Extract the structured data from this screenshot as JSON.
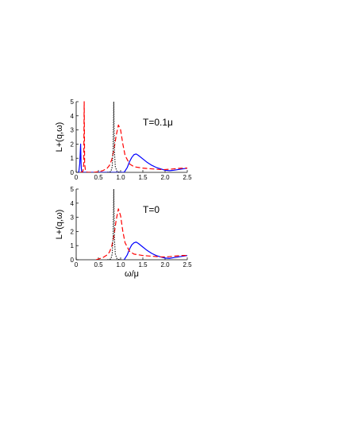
{
  "figure": {
    "xlabel": "ω/μ"
  },
  "chart_data": [
    {
      "type": "line",
      "annotation": "T=0.1μ",
      "ylabel": "L+(q,ω)",
      "xlim": [
        0,
        2.5
      ],
      "ylim": [
        0,
        5
      ],
      "xticks": [
        "0",
        "0.5",
        "1.0",
        "1.5",
        "2.0",
        "2.5"
      ],
      "yticks": [
        "0",
        "1",
        "2",
        "3",
        "4",
        "5"
      ],
      "grid": false,
      "series": [
        {
          "color": "#0000ff",
          "style": "solid",
          "x": [
            0.05,
            0.06,
            0.08,
            0.1,
            0.11,
            0.12,
            0.13,
            0.15,
            1.08,
            1.15,
            1.2,
            1.25,
            1.3,
            1.35,
            1.4,
            1.5,
            1.6,
            1.7,
            1.8,
            1.9,
            2.0,
            2.1,
            2.2,
            2.3,
            2.4,
            2.5
          ],
          "y": [
            0,
            0.05,
            0.6,
            2.0,
            0.6,
            0.1,
            0,
            0,
            0,
            0.35,
            0.75,
            1.05,
            1.25,
            1.3,
            1.2,
            0.95,
            0.7,
            0.5,
            0.35,
            0.25,
            0.15,
            0.12,
            0.15,
            0.2,
            0.25,
            0.3
          ]
        },
        {
          "color": "#ff0000",
          "style": "dashed",
          "x": [
            0.1,
            0.15,
            0.17,
            0.18,
            0.19,
            0.21,
            0.25,
            0.4,
            0.5,
            0.6,
            0.7,
            0.75,
            0.8,
            0.85,
            0.9,
            0.95,
            1.0,
            1.05,
            1.1,
            1.2,
            1.3,
            1.5,
            1.7,
            1.9,
            2.0,
            2.1,
            2.2,
            2.3,
            2.4,
            2.5
          ],
          "y": [
            0,
            0.05,
            0.6,
            5.0,
            0.6,
            0.1,
            0,
            0,
            0.05,
            0.12,
            0.3,
            0.5,
            0.9,
            1.6,
            2.6,
            3.35,
            3.0,
            2.0,
            1.2,
            0.6,
            0.4,
            0.3,
            0.25,
            0.2,
            0.2,
            0.22,
            0.25,
            0.28,
            0.3,
            0.3
          ]
        },
        {
          "color": "#000000",
          "style": "dotted",
          "x": [
            0.7,
            0.78,
            0.81,
            0.83,
            0.845,
            0.86,
            0.88,
            0.92,
            1.0
          ],
          "y": [
            0,
            0.05,
            0.4,
            1.6,
            5.0,
            1.6,
            0.4,
            0.05,
            0
          ]
        }
      ]
    },
    {
      "type": "line",
      "annotation": "T=0",
      "ylabel": "L+(q,ω)",
      "xlabel": "ω/μ",
      "xlim": [
        0,
        2.5
      ],
      "ylim": [
        0,
        5
      ],
      "xticks": [
        "0",
        "0.5",
        "1.0",
        "1.5",
        "2.0",
        "2.5"
      ],
      "yticks": [
        "0",
        "1",
        "2",
        "3",
        "4",
        "5"
      ],
      "grid": false,
      "series": [
        {
          "color": "#0000ff",
          "style": "solid",
          "x": [
            1.08,
            1.15,
            1.2,
            1.25,
            1.3,
            1.35,
            1.4,
            1.5,
            1.6,
            1.7,
            1.8,
            1.9,
            2.0,
            2.1,
            2.2,
            2.3,
            2.4,
            2.5
          ],
          "y": [
            0,
            0.35,
            0.75,
            1.05,
            1.2,
            1.25,
            1.15,
            0.9,
            0.65,
            0.45,
            0.3,
            0.2,
            0.12,
            0.1,
            0.15,
            0.2,
            0.25,
            0.3
          ]
        },
        {
          "color": "#ff0000",
          "style": "dashed",
          "x": [
            0.45,
            0.5,
            0.6,
            0.7,
            0.75,
            0.8,
            0.85,
            0.9,
            0.95,
            1.0,
            1.05,
            1.1,
            1.2,
            1.3,
            1.5,
            1.7,
            1.9,
            2.0,
            2.1,
            2.2,
            2.3,
            2.4,
            2.5
          ],
          "y": [
            0,
            0.05,
            0.15,
            0.35,
            0.55,
            0.95,
            1.7,
            2.8,
            3.6,
            3.1,
            2.0,
            1.2,
            0.6,
            0.4,
            0.3,
            0.25,
            0.2,
            0.2,
            0.22,
            0.25,
            0.28,
            0.3,
            0.3
          ]
        },
        {
          "color": "#000000",
          "style": "dotted",
          "x": [
            0.7,
            0.78,
            0.81,
            0.83,
            0.845,
            0.86,
            0.88,
            0.92,
            1.0
          ],
          "y": [
            0,
            0.05,
            0.4,
            1.6,
            5.0,
            1.6,
            0.4,
            0.05,
            0
          ]
        }
      ]
    }
  ]
}
